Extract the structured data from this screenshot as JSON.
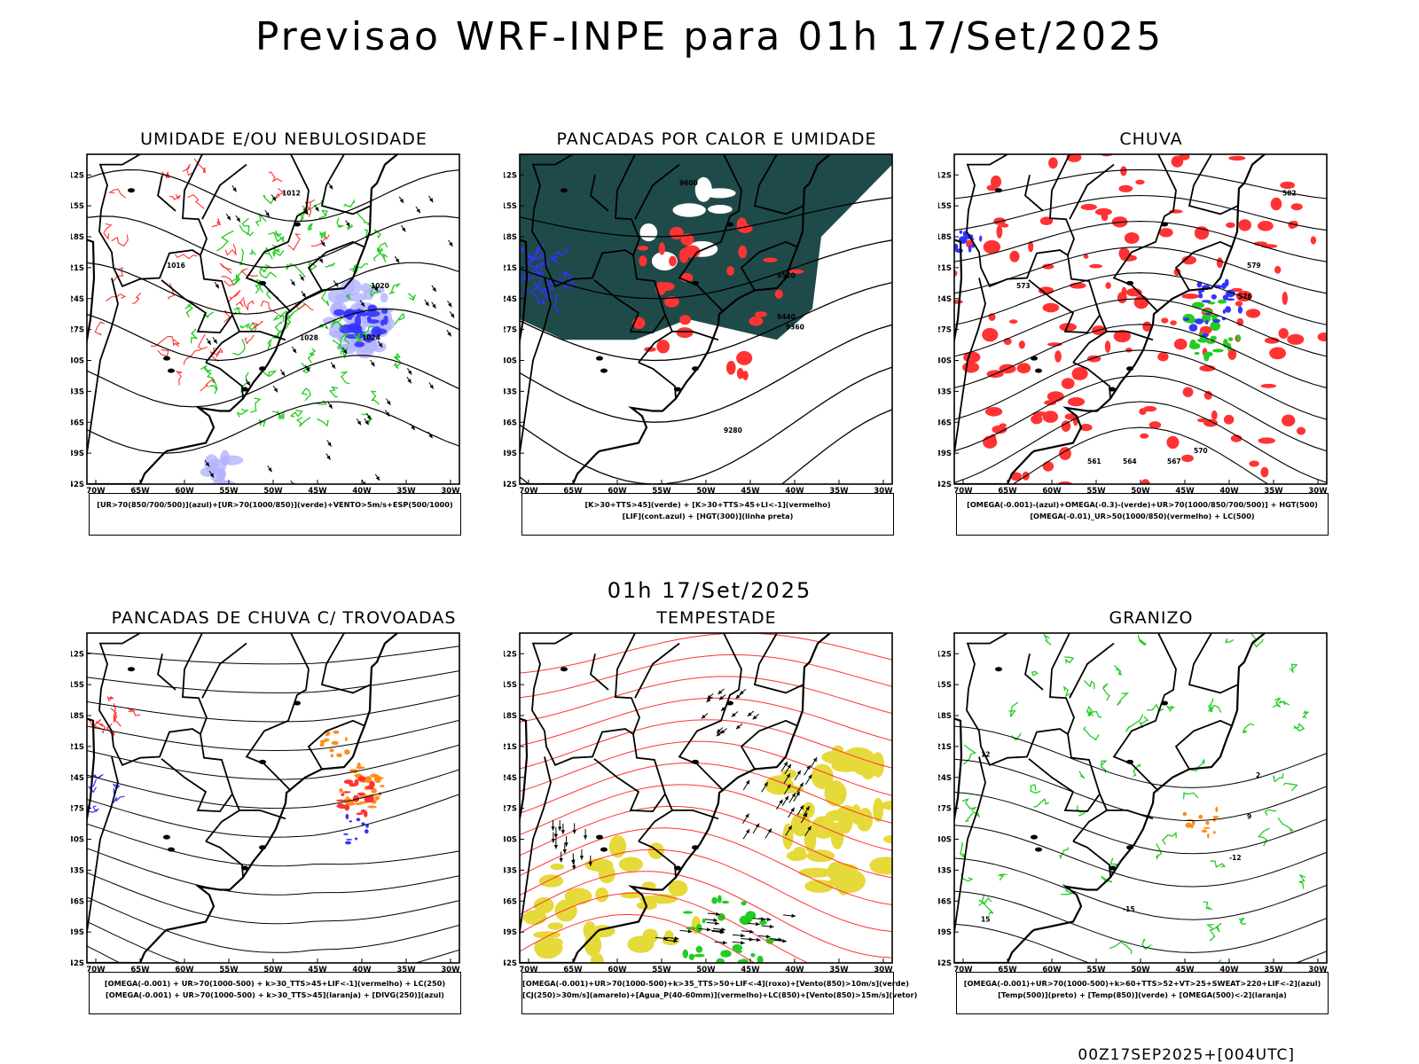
{
  "header": {
    "title": "Previsao WRF-INPE  para 01h 17/Set/2025",
    "mid_time": "01h 17/Set/2025",
    "footer": "00Z17SEP2025+[004UTC]"
  },
  "axes": {
    "lat_ticks": [
      "12S",
      "15S",
      "18S",
      "21S",
      "24S",
      "27S",
      "30S",
      "33S",
      "36S",
      "39S",
      "42S"
    ],
    "lon_ticks": [
      "70W",
      "65W",
      "60W",
      "55W",
      "50W",
      "45W",
      "40W",
      "35W",
      "30W"
    ],
    "lat_range": [
      -42,
      -10
    ],
    "lon_range": [
      -71,
      -29
    ]
  },
  "colors": {
    "blue": "#3333ff",
    "green": "#22cc22",
    "red": "#ff3333",
    "darkteal": "#1f4a4a",
    "yellow": "#e6d93a",
    "orange": "#ff8c1a",
    "lightblue": "#b3b3ff"
  },
  "panels": [
    {
      "id": "umidade",
      "title": "UMIDADE E/OU NEBULOSIDADE",
      "legend": [
        "[UR>70(850/700/500)](azul)+[UR>70(1000/850)](verde)+VENTO>5m/s+ESP(500/1000)"
      ],
      "contour_labels": [
        "1016",
        "1012",
        "1020",
        "1024",
        "1028"
      ]
    },
    {
      "id": "pancadas-calor",
      "title": "PANCADAS POR CALOR E UMIDADE",
      "legend": [
        "[K>30+TTS>45](verde) + [K>30+TTS>45+LI<-1](vermelho)",
        "[LIF](cont.azul) + [HGT(300)](linha preta)"
      ],
      "contour_labels": [
        "9600",
        "9520",
        "9440",
        "9360",
        "9280"
      ]
    },
    {
      "id": "chuva",
      "title": "CHUVA",
      "legend": [
        "[OMEGA(-0.001)-(azul)+OMEGA(-0.3)-(verde)+UR>70(1000/850/700/500)] + HGT(500)",
        "[OMEGA(-0.01)_UR>50(1000/850)(vermelho) + LC(500)"
      ],
      "contour_labels": [
        "582",
        "579",
        "576",
        "573",
        "570",
        "567",
        "564",
        "561"
      ]
    },
    {
      "id": "trovoadas",
      "title": "PANCADAS DE CHUVA C/ TROVOADAS",
      "legend": [
        "[OMEGA(-0.001) + UR>70(1000-500) + k>30_TTS>45+LIF<-1](vermelho) + LC(250)",
        "[OMEGA(-0.001) + UR>70(1000-500) + k>30_TTS>45](laranja) + [DIVG(250)](azul)"
      ],
      "contour_labels": []
    },
    {
      "id": "tempestade",
      "title": "TEMPESTADE",
      "legend": [
        "[OMEGA(-0.001)+UR>70(1000-500)+k>35_TTS>50+LIF<-4](roxo)+[Vento(850)>10m/s](verde)",
        "[CJ(250)>30m/s](amarelo)+[Agua_P(40-60mm)](vermelho)+LC(850)+[Vento(850)>15m/s](vetor)"
      ],
      "contour_labels": []
    },
    {
      "id": "granizo",
      "title": "GRANIZO",
      "legend": [
        "[OMEGA(-0.001)+UR>70(1000-500)+k>60+TTS>52+VT>25+SWEAT>220+LIF<-2](azul)",
        "[Temp(500)](preto) + [Temp(850)](verde) + [OMEGA(500)<-2](laranja)"
      ],
      "contour_labels": [
        "-12",
        "-15",
        "15",
        "12",
        "9",
        "2"
      ]
    }
  ]
}
